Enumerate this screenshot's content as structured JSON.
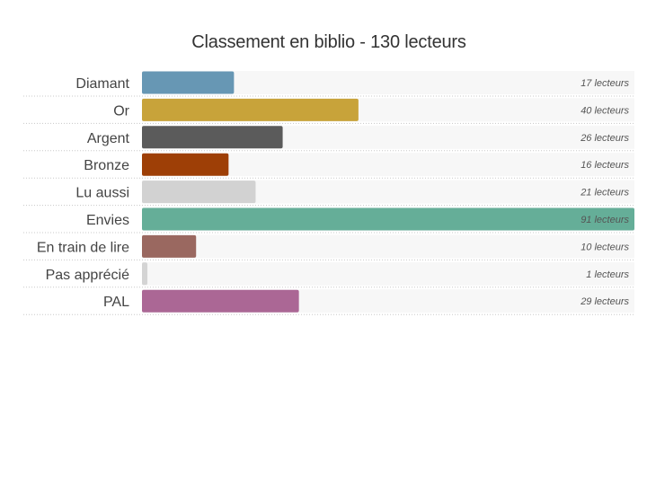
{
  "chart_data": {
    "type": "bar",
    "orientation": "horizontal",
    "title": "Classement en biblio - 130 lecteurs",
    "xlim": [
      0,
      91
    ],
    "grid": false,
    "legend": "none",
    "categories": [
      "Diamant",
      "Or",
      "Argent",
      "Bronze",
      "Lu aussi",
      "Envies",
      "En train de lire",
      "Pas apprécié",
      "PAL"
    ],
    "values": [
      17,
      40,
      26,
      16,
      21,
      91,
      10,
      1,
      29
    ],
    "value_labels": [
      "17 lecteurs",
      "40 lecteurs",
      "26 lecteurs",
      "16 lecteurs",
      "21 lecteurs",
      "91 lecteurs",
      "10 lecteurs",
      "1 lecteurs",
      "29 lecteurs"
    ],
    "colors": [
      "#6797b4",
      "#c8a33a",
      "#5b5b5b",
      "#9e3f06",
      "#d2d2d2",
      "#65ae98",
      "#9a6860",
      "#d4d4d4",
      "#ab6795"
    ]
  }
}
